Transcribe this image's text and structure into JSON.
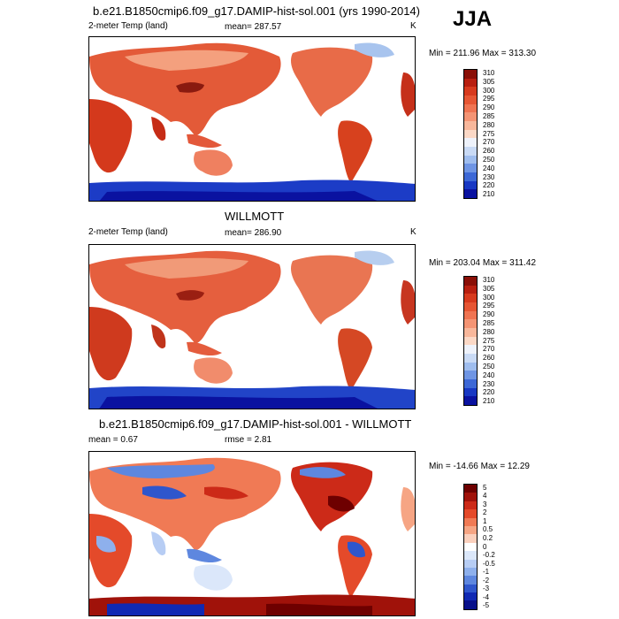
{
  "season": "JJA",
  "panels": [
    {
      "title": "b.e21.B1850cmip6.f09_g17.DAMIP-hist-sol.001 (yrs 1990-2014)",
      "left_label": "2-meter Temp (land)",
      "center_label": "mean= 287.57",
      "units": "K",
      "range_label": "Min = 211.96 Max = 313.30",
      "colorbar": [
        "310",
        "305",
        "300",
        "295",
        "290",
        "285",
        "280",
        "275",
        "270",
        "260",
        "250",
        "240",
        "230",
        "220",
        "210"
      ],
      "colors": [
        "#8a0f07",
        "#b81f10",
        "#d73a1e",
        "#e65634",
        "#ef7452",
        "#f49474",
        "#f8b79b",
        "#fbd8c6",
        "#eef2fb",
        "#c9daf5",
        "#9fbdee",
        "#6f95e4",
        "#3d68d6",
        "#1838c3",
        "#0a12a0"
      ]
    },
    {
      "title": "WILLMOTT",
      "left_label": "2-meter Temp (land)",
      "center_label": "mean= 286.90",
      "units": "K",
      "range_label": "Min = 203.04 Max = 311.42",
      "colorbar": [
        "310",
        "305",
        "300",
        "295",
        "290",
        "285",
        "280",
        "275",
        "270",
        "260",
        "250",
        "240",
        "230",
        "220",
        "210"
      ],
      "colors": [
        "#8a0f07",
        "#b81f10",
        "#d73a1e",
        "#e65634",
        "#ef7452",
        "#f49474",
        "#f8b79b",
        "#fbd8c6",
        "#eef2fb",
        "#c9daf5",
        "#9fbdee",
        "#6f95e4",
        "#3d68d6",
        "#1838c3",
        "#0a12a0"
      ]
    },
    {
      "title": "b.e21.B1850cmip6.f09_g17.DAMIP-hist-sol.001 - WILLMOTT",
      "left_label": "mean = 0.67",
      "center_label": "rmse = 2.81",
      "units": "",
      "range_label": "Min = -14.66 Max = 12.29",
      "colorbar": [
        "5",
        "4",
        "3",
        "2",
        "1",
        "0.5",
        "0.2",
        "0",
        "-0.2",
        "-0.5",
        "-1",
        "-2",
        "-3",
        "-4",
        "-5"
      ],
      "colors": [
        "#6e0000",
        "#a0120a",
        "#cc2a18",
        "#e44a2a",
        "#f07a55",
        "#f6a584",
        "#fbd0bd",
        "#ffffff",
        "#dbe7fa",
        "#b7cdf4",
        "#8eb0ec",
        "#5e87df",
        "#2f56cc",
        "#1029b3",
        "#08108a"
      ]
    }
  ]
}
